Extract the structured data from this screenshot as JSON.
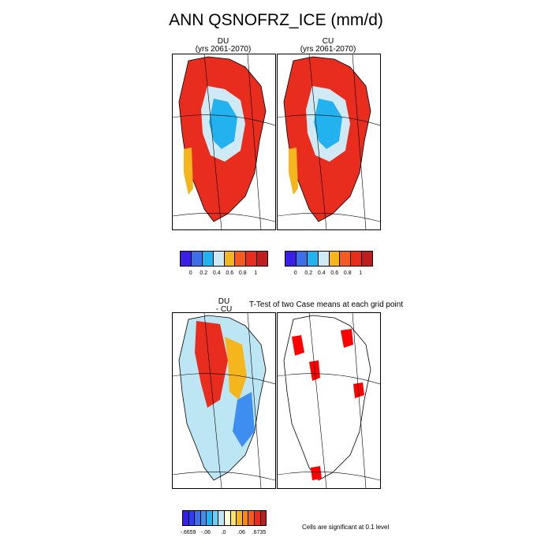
{
  "figure": {
    "title": "ANN QSNOFRZ_ICE (mm/d)",
    "ttest_title": "T-Test of two Case means at each grid point",
    "significance_note": "Cells are significant at 0.1 level"
  },
  "panels": {
    "du": {
      "name": "DU",
      "years": "(yrs 2061-2070)"
    },
    "cu": {
      "name": "CU",
      "years": "(yrs 2061-2070)"
    },
    "diff": {
      "line1": "DU",
      "line2": "- CU"
    }
  },
  "colorbars": {
    "top_colors": [
      "#3b1ee8",
      "#3d6fe8",
      "#22b2f0",
      "#cfeaf5",
      "#f5b51c",
      "#f55a1e",
      "#e82d1e",
      "#c01e1e"
    ],
    "top_labels": [
      "0",
      "0.2",
      "0.4",
      "0.6",
      "0.8",
      "1"
    ],
    "diff_colors": [
      "#3b1ee8",
      "#2a3ff0",
      "#3d6fe8",
      "#3d8ef0",
      "#22b2f0",
      "#6fcdf3",
      "#bde6f5",
      "#fffbd9",
      "#fbe36a",
      "#f5b51c",
      "#f58a1c",
      "#f55a1e",
      "#e82d1e",
      "#c01e1e"
    ],
    "diff_labels": [
      "-.6659",
      "-.06",
      ".0",
      ".06",
      ".6735"
    ]
  },
  "map_colors": {
    "land_outline": "#000000",
    "significant": "#ff0000",
    "high": "#e82d1e",
    "mid": "#f5b51c",
    "low": "#22b2f0",
    "pale": "#cfeaf5"
  }
}
